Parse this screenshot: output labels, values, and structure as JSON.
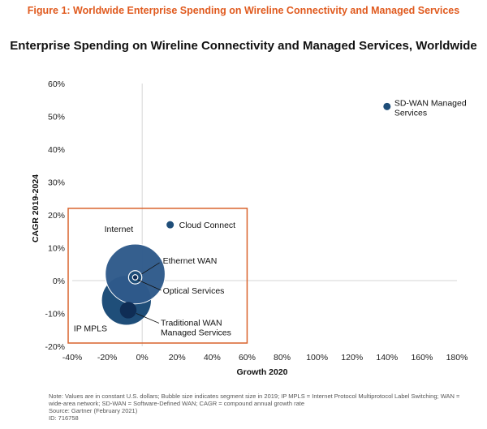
{
  "figure_label": "Figure 1: Worldwide Enterprise Spending on Wireline Connectivity and Managed Services",
  "chart_title": "Enterprise Spending on Wireline Connectivity and Managed Services, Worldwide",
  "notes": {
    "line1": "Note: Values are in constant U.S. dollars; Bubble size indicates segment size in 2019; IP MPLS = Internet Protocol Multiprotocol Label Switching; WAN =",
    "line2": "wide-area network; SD-WAN = Software-Defined WAN; CAGR = compound annual growth rate",
    "source": "Source: Gartner (February 2021)",
    "id": "ID: 716758"
  },
  "colors": {
    "figure_label": "#e05a1e",
    "highlight_box": "#d9622b",
    "bubble_dark": "#1f4e79",
    "bubble_mid": "#2e5a8a",
    "bubble_darkest": "#0f2d55"
  },
  "chart_data": {
    "type": "bubble",
    "xlabel": "Growth 2020",
    "ylabel": "CAGR 2019-2024",
    "xlim": [
      -40,
      180
    ],
    "ylim": [
      -20,
      60
    ],
    "x_ticks": [
      "-40%",
      "-20%",
      "0%",
      "20%",
      "40%",
      "60%",
      "80%",
      "100%",
      "120%",
      "140%",
      "160%",
      "180%"
    ],
    "y_ticks": [
      "-20%",
      "-10%",
      "0%",
      "10%",
      "20%",
      "30%",
      "40%",
      "50%",
      "60%"
    ],
    "grid": "zero lines only",
    "highlight_box": {
      "x": [
        -40,
        60
      ],
      "y": [
        -20,
        22
      ]
    },
    "points": [
      {
        "label": "SD-WAN Managed Services",
        "x": 140,
        "y": 53,
        "size": 0.5,
        "style": "dot"
      },
      {
        "label": "Cloud Connect",
        "x": 16,
        "y": 17,
        "size": 0.5,
        "style": "dot"
      },
      {
        "label": "Internet",
        "x": -4,
        "y": 2,
        "size": 18,
        "style": "bubble"
      },
      {
        "label": "IP MPLS",
        "x": -9,
        "y": -6,
        "size": 15,
        "style": "bubble"
      },
      {
        "label": "Traditional WAN Managed Services",
        "x": -8,
        "y": -9,
        "size": 5,
        "style": "bubble"
      },
      {
        "label": "Ethernet WAN",
        "x": -4,
        "y": 1,
        "size": 4,
        "style": "ring"
      },
      {
        "label": "Optical Services",
        "x": -4,
        "y": 1,
        "size": 1.6,
        "style": "ring"
      }
    ]
  }
}
